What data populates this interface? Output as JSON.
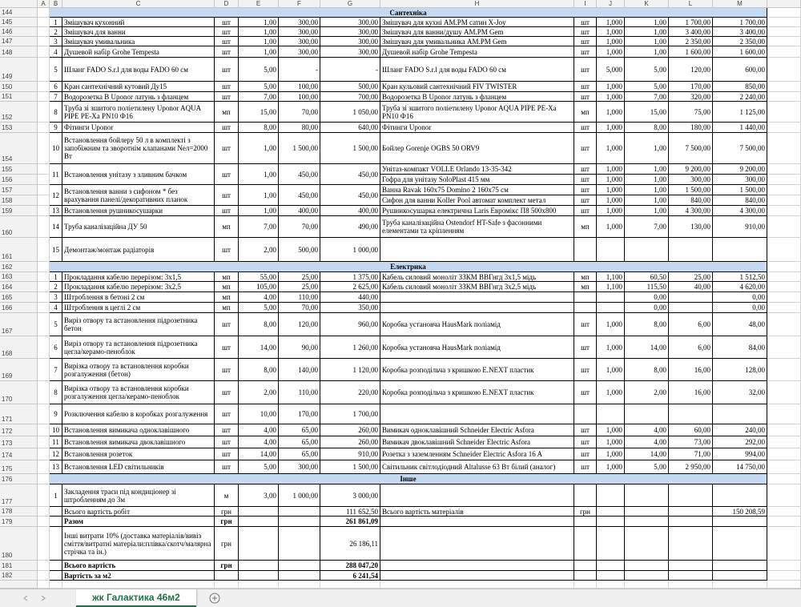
{
  "columns": [
    "A",
    "B",
    "C",
    "D",
    "E",
    "F",
    "G",
    "H",
    "I",
    "J",
    "K",
    "L",
    "M"
  ],
  "row_numbers": [
    "144",
    "145",
    "146",
    "147",
    "148",
    "149",
    "150",
    "151",
    "152",
    "153",
    "154",
    "155",
    "156",
    "157",
    "158",
    "159",
    "160",
    "161",
    "162",
    "163",
    "164",
    "165",
    "166",
    "167",
    "168",
    "169",
    "170",
    "171",
    "172",
    "173",
    "174",
    "175",
    "176",
    "177",
    "178",
    "179",
    "180",
    "181",
    "182"
  ],
  "rows": [
    {
      "section": "Сантехніка"
    },
    {
      "B": "1",
      "C": "Змішувач кухонний",
      "D": "шт",
      "E": "1,00",
      "F": "300,00",
      "G": "300,00",
      "H": "Змішувач для кухні AM.PM сатин X-Joy",
      "I": "шт",
      "J": "1,000",
      "K": "1,00",
      "L": "1 700,00",
      "M": "1 700,00"
    },
    {
      "B": "2",
      "C": "Змішувач для ванни",
      "D": "шт",
      "E": "1,00",
      "F": "300,00",
      "G": "300,00",
      "H": "Змішувач для ванни/душу AM.PM Gem",
      "I": "шт",
      "J": "1,000",
      "K": "1,00",
      "L": "3 400,00",
      "M": "3 400,00"
    },
    {
      "B": "3",
      "C": "Змішувач умивальника",
      "D": "шт",
      "E": "1,00",
      "F": "300,00",
      "G": "300,00",
      "H": "Змішувач для умивальника AM.PM Gem",
      "I": "шт",
      "J": "1,000",
      "K": "1,00",
      "L": "2 350,00",
      "M": "2 350,00"
    },
    {
      "B": "4",
      "C": "Душевой набір Grohe Tempesta",
      "D": "шт",
      "E": "1,00",
      "F": "300,00",
      "G": "300,00",
      "H": "Душевой набір Grohe Tempesta",
      "I": "шт",
      "J": "1,000",
      "K": "1,00",
      "L": "1 600,00",
      "M": "1 600,00"
    },
    {
      "B": "5",
      "C": "Шланг FADO S.r.l для воды FADO 60 см",
      "D": "шт",
      "E": "5,00",
      "F": "-",
      "G": "-",
      "H": "Шланг FADO S.r.l для воды FADO 60 см",
      "I": "шт",
      "J": "5,000",
      "K": "5,00",
      "L": "120,00",
      "M": "600,00"
    },
    {
      "B": "6",
      "C": "Кран сантехнічний кутовий Ду15",
      "D": "шт",
      "E": "5,00",
      "F": "100,00",
      "G": "500,00",
      "H": "Кран кульовий сантехнічний FIV TWISTER",
      "I": "шт",
      "J": "1,000",
      "K": "5,00",
      "L": "170,00",
      "M": "850,00"
    },
    {
      "B": "7",
      "C": "Водорозетка В Uponor латунь з фланцем",
      "D": "шт",
      "E": "7,00",
      "F": "100,00",
      "G": "700,00",
      "H": "Водорозетка В Uponor латунь з фланцем",
      "I": "шт",
      "J": "1,000",
      "K": "7,00",
      "L": "320,00",
      "M": "2 240,00"
    },
    {
      "B": "8",
      "C": "Труба зі зшитого поліетилену Uponor AQUA PIPE PE-Xa PN10 Ф16",
      "D": "мп",
      "E": "15,00",
      "F": "70,00",
      "G": "1 050,00",
      "H": "Труба зі зшитого поліетилену Uponor AQUA PIPE PE-Xa PN10 Ф16",
      "I": "мп",
      "J": "1,000",
      "K": "15,00",
      "L": "75,00",
      "M": "1 125,00"
    },
    {
      "B": "9",
      "C": "Фітинги Uponor",
      "D": "шт",
      "E": "8,00",
      "F": "80,00",
      "G": "640,00",
      "H": "Фітинги Uponor",
      "I": "шт",
      "J": "1,000",
      "K": "8,00",
      "L": "180,00",
      "M": "1 440,00"
    },
    {
      "B": "10",
      "C": "Встановлення бойлеру 50 л в комплекті з запобіжним та зворотнім клапанами Nел=2000 Вт",
      "D": "шт",
      "E": "1,00",
      "F": "1 500,00",
      "G": "1 500,00",
      "H": "Бойлер Gorenje OGBS 50 ORV9",
      "I": "шт",
      "J": "1,000",
      "K": "1,00",
      "L": "7 500,00",
      "M": "7 500,00"
    },
    {
      "B": "11",
      "C": "Встановлення унітазу з зливним бачком",
      "D": "шт",
      "E": "1,00",
      "F": "450,00",
      "G": "450,00",
      "H": "Унітаз-компакт VOLLE Orlando 13-35-342",
      "I": "шт",
      "J": "1,000",
      "K": "1,00",
      "L": "9 200,00",
      "M": "9 200,00"
    },
    {
      "H": "Гофра для унітазу SoloPlast 415 мм",
      "I": "шт",
      "J": "1,000",
      "K": "1,00",
      "L": "300,00",
      "M": "300,00"
    },
    {
      "B": "12",
      "C": "Встановлення ванни з сифоном * без врахування панелі/декоративних планок",
      "D": "шт",
      "E": "1,00",
      "F": "450,00",
      "G": "450,00",
      "H": "Ванна Ravak 160x75 Domino 2 160x75 см",
      "I": "шт",
      "J": "1,000",
      "K": "1,00",
      "L": "1 500,00",
      "M": "1 500,00"
    },
    {
      "H": "Сифон для ванни Koller Pool автомат комплект метал",
      "I": "шт",
      "J": "1,000",
      "K": "1,00",
      "L": "840,00",
      "M": "840,00"
    },
    {
      "B": "13",
      "C": "Встановлення рушникосушарки",
      "D": "шт",
      "E": "1,00",
      "F": "400,00",
      "G": "400,00",
      "H": "Рушникосушарка електрична Laris Евромікс П8 500х800",
      "I": "шт",
      "J": "1,000",
      "K": "1,00",
      "L": "4 300,00",
      "M": "4 300,00"
    },
    {
      "B": "14",
      "C": "Труба каналізаційна ДУ 50",
      "D": "мп",
      "E": "7,00",
      "F": "70,00",
      "G": "490,00",
      "H": "Труба каналізаційна Ostendorf HT-Safe з фасонними елементами та кріпленням",
      "I": "мп",
      "J": "1,000",
      "K": "7,00",
      "L": "130,00",
      "M": "910,00"
    },
    {
      "B": "15",
      "C": "Демонтаж/монтаж радіаторів",
      "D": "шт",
      "E": "2,00",
      "F": "500,00",
      "G": "1 000,00"
    },
    {
      "section": "Електрика"
    },
    {
      "B": "1",
      "C": "Прокладання кабелю перерізом: 3х1,5",
      "D": "мп",
      "E": "55,00",
      "F": "25,00",
      "G": "1 375,00",
      "H": "Кабель силовий моноліт ЗЗКМ ВВГнгд 3х1,5 мідь",
      "I": "мп",
      "J": "1,100",
      "K": "60,50",
      "L": "25,00",
      "M": "1 512,50"
    },
    {
      "B": "2",
      "C": "Прокладання кабелю перерізом: 3х2,5",
      "D": "мп",
      "E": "105,00",
      "F": "25,00",
      "G": "2 625,00",
      "H": "Кабель силовий моноліт ЗЗКМ ВВГнгд 3х2,5 мідь",
      "I": "мп",
      "J": "1,100",
      "K": "115,50",
      "L": "40,00",
      "M": "4 620,00"
    },
    {
      "B": "3",
      "C": "Штроблення в бетоні 2 см",
      "D": "мп",
      "E": "4,00",
      "F": "110,00",
      "G": "440,00",
      "K": "0,00",
      "M": "0,00"
    },
    {
      "B": "4",
      "C": "Штроблення в цеглі 2 см",
      "D": "мп",
      "E": "5,00",
      "F": "70,00",
      "G": "350,00",
      "K": "0,00",
      "M": "0,00"
    },
    {
      "B": "5",
      "C": "Виріз отвору та встановлення підрозетника бетон",
      "D": "шт",
      "E": "8,00",
      "F": "120,00",
      "G": "960,00",
      "H": "Коробка установча HausMark поліамід",
      "I": "шт",
      "J": "1,000",
      "K": "8,00",
      "L": "6,00",
      "M": "48,00"
    },
    {
      "B": "6",
      "C": "Виріз отвору та встановлення підрозетника цегла/керамо-пеноблок",
      "D": "шт",
      "E": "14,00",
      "F": "90,00",
      "G": "1 260,00",
      "H": "Коробка установча HausMark поліамід",
      "I": "шт",
      "J": "1,000",
      "K": "14,00",
      "L": "6,00",
      "M": "84,00"
    },
    {
      "B": "7",
      "C": "Вирізка отвору та встановлення коробки розгалуження (бетон)",
      "D": "шт",
      "E": "8,00",
      "F": "140,00",
      "G": "1 120,00",
      "H": "Коробка розподільча з кришкою E.NEXT пластик",
      "I": "шт",
      "J": "1,000",
      "K": "8,00",
      "L": "16,00",
      "M": "128,00"
    },
    {
      "B": "8",
      "C": "Вирізка отвору та встановлення коробки розгалуження цегла/керамо-пеноблок",
      "D": "шт",
      "E": "2,00",
      "F": "110,00",
      "G": "220,00",
      "H": "Коробка розподільча з кришкою E.NEXT пластик",
      "I": "шт",
      "J": "1,000",
      "K": "2,00",
      "L": "16,00",
      "M": "32,00"
    },
    {
      "B": "9",
      "C": "Розключення кабелю в коробках розгалуження",
      "D": "шт",
      "E": "10,00",
      "F": "170,00",
      "G": "1 700,00"
    },
    {
      "B": "10",
      "C": "Встановлення вимикача одноклавішного",
      "D": "шт",
      "E": "4,00",
      "F": "65,00",
      "G": "260,00",
      "H": "Вимикач одноклавішний Schneider Electric Asfora",
      "I": "шт",
      "J": "1,000",
      "K": "4,00",
      "L": "60,00",
      "M": "240,00"
    },
    {
      "B": "11",
      "C": "Встановлення вимикача двоклавішного",
      "D": "шт",
      "E": "4,00",
      "F": "65,00",
      "G": "260,00",
      "H": "Вимикач двоклавішний Schneider Electric Asfora",
      "I": "шт",
      "J": "1,000",
      "K": "4,00",
      "L": "73,00",
      "M": "292,00"
    },
    {
      "B": "12",
      "C": "Встановлення розеток",
      "D": "шт",
      "E": "14,00",
      "F": "65,00",
      "G": "910,00",
      "H": "Розетка з заземленням Schneider Electric Asfora 16 A",
      "I": "шт",
      "J": "1,000",
      "K": "14,00",
      "L": "71,00",
      "M": "994,00"
    },
    {
      "B": "13",
      "C": "Встановлення LED світильників",
      "D": "шт",
      "E": "5,00",
      "F": "300,00",
      "G": "1 500,00",
      "H": "Світильник світлодіодний Altalusse 63 Вт білий (аналог)",
      "I": "шт",
      "J": "1,000",
      "K": "5,00",
      "L": "2 950,00",
      "M": "14 750,00"
    },
    {
      "section": "Інше"
    },
    {
      "B": "1",
      "C": "Закладення траси під кондиціонер зі штробленням до 3м",
      "D": "м",
      "E": "3,00",
      "F": "1 000,00",
      "G": "3 000,00"
    },
    {
      "C": "Всього вартість робіт",
      "D": "грн",
      "G": "111 652,50",
      "H": "Всього вартість матеріалів",
      "I": "грн",
      "M": "150 208,59"
    },
    {
      "C": "Разом",
      "D": "грн",
      "G": "261 861,09"
    },
    {
      "C": "Інші витрати 10% (доставка матеріалів/вивіз сміття/витратні матеріали:плівка/скотч/малярна стрічка та ін.)",
      "D": "грн",
      "G": "26 186,11"
    },
    {
      "C": "Всього вартість",
      "D": "грн",
      "G": "288 047,20"
    },
    {
      "C": "Вартість за м2",
      "G": "6 241,54"
    }
  ],
  "sheet_tab": "жк Галактика 46м2"
}
